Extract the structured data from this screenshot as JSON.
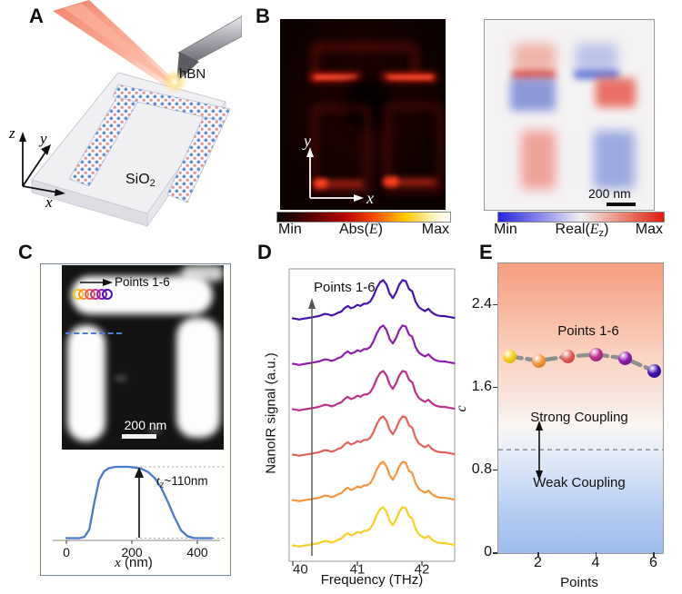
{
  "panels": {
    "a": "A",
    "b": "B",
    "c": "C",
    "d": "D",
    "e": "E"
  },
  "panel_a": {
    "hbn_label": "hBN",
    "substrate_label": "SiO",
    "substrate_sub": "2",
    "axis_x": "x",
    "axis_y": "y",
    "axis_z": "z"
  },
  "panel_b": {
    "axis_x": "x",
    "axis_y": "y",
    "abs_image": {
      "colorbar_min": "Min",
      "title_pre": "Abs(",
      "title_e": "E",
      "title_post": ")",
      "colorbar_max": "Max",
      "min_color": "#000000",
      "max_color": "#ffffff"
    },
    "real_image": {
      "colorbar_min": "Min",
      "title_pre": "Real(",
      "title_e": "E",
      "title_sub": "z",
      "title_post": ")",
      "colorbar_max": "Max",
      "scalebar": "200 nm",
      "min_color": "#2424dd",
      "max_color": "#e01b10"
    }
  },
  "panel_c": {
    "points_label": "Points 1-6",
    "scalebar": "200 nm",
    "ring_colors": [
      "#f2c81f",
      "#f2943c",
      "#e4605c",
      "#c03289",
      "#8c1fb4",
      "#4a14b4"
    ]
  },
  "chart_data": [
    {
      "id": "height_profile",
      "panel": "C",
      "type": "line",
      "xlabel_italic": "x",
      "xlabel_rest": " (nm)",
      "x_ticks": [
        "0",
        "200",
        "400"
      ],
      "annotation": {
        "t": "t",
        "sub": "z",
        "rest": "~110nm"
      },
      "line_color": "#4a7bc8",
      "x_nm": [
        0,
        20,
        40,
        55,
        70,
        85,
        100,
        115,
        130,
        150,
        170,
        190,
        210,
        230,
        250,
        270,
        290,
        310,
        330,
        350,
        370,
        390,
        410,
        430,
        445
      ],
      "height_nm": [
        2,
        2,
        2,
        4,
        15,
        55,
        90,
        103,
        108,
        110,
        110,
        110,
        109,
        107,
        102,
        93,
        78,
        57,
        34,
        14,
        5,
        2,
        2,
        2,
        2
      ],
      "height_value_nm": 110
    },
    {
      "id": "nanoir_spectra",
      "panel": "D",
      "type": "line",
      "xlabel": "Frequency (THz)",
      "ylabel": "NanoIR signal (a.u.)",
      "x_ticks": [
        "40",
        "41",
        "42"
      ],
      "xlim": [
        40,
        42.5
      ],
      "annotation": "Points 1-6",
      "x_thz": [
        40.0,
        40.05,
        40.1,
        40.15,
        40.2,
        40.25,
        40.3,
        40.35,
        40.4,
        40.45,
        40.5,
        40.55,
        40.6,
        40.65,
        40.7,
        40.75,
        40.8,
        40.85,
        40.9,
        40.95,
        41.0,
        41.05,
        41.1,
        41.15,
        41.2,
        41.25,
        41.3,
        41.35,
        41.4,
        41.45,
        41.5,
        41.55,
        41.6,
        41.65,
        41.7,
        41.75,
        41.8,
        41.85,
        41.9,
        41.95,
        42.0,
        42.05,
        42.1,
        42.15,
        42.2,
        42.25,
        42.3,
        42.35,
        42.4,
        42.45,
        42.5
      ],
      "shape": [
        4,
        3,
        2,
        3,
        4,
        5,
        6,
        7,
        8,
        10,
        12,
        11,
        9,
        11,
        14,
        16,
        22,
        26,
        22,
        24,
        28,
        26,
        30,
        30,
        34,
        44,
        58,
        68,
        72,
        64,
        48,
        40,
        50,
        64,
        72,
        70,
        56,
        52,
        34,
        24,
        20,
        17,
        21,
        15,
        11,
        9,
        8,
        8,
        7,
        6,
        5
      ],
      "series": [
        {
          "name": "Point 1",
          "color": "#f7cf25"
        },
        {
          "name": "Point 2",
          "color": "#f6953e"
        },
        {
          "name": "Point 3",
          "color": "#e4605c"
        },
        {
          "name": "Point 4",
          "color": "#bb3089"
        },
        {
          "name": "Point 5",
          "color": "#8e1dae"
        },
        {
          "name": "Point 6",
          "color": "#4412ae"
        }
      ]
    },
    {
      "id": "coupling_constant",
      "panel": "E",
      "type": "scatter",
      "xlabel": "Points",
      "ylabel": "c",
      "x_ticks": [
        "2",
        "4",
        "6"
      ],
      "y_ticks": [
        "0",
        "0.8",
        "1.6",
        "2.4"
      ],
      "xlim": [
        0.6,
        6.3
      ],
      "ylim": [
        0,
        2.8
      ],
      "threshold_c": 1.0,
      "annotation": "Points 1-6",
      "labels": {
        "above": "Strong Coupling",
        "below": "Weak Coupling"
      },
      "connector_color": "#8f8f8f",
      "points": [
        {
          "x": 1,
          "c": 1.9,
          "color": "#f7cf25",
          "dark": "#c79a08"
        },
        {
          "x": 2,
          "c": 1.86,
          "color": "#f6953e",
          "dark": "#c56714"
        },
        {
          "x": 3,
          "c": 1.9,
          "color": "#e4605c",
          "dark": "#aa3430"
        },
        {
          "x": 4,
          "c": 1.92,
          "color": "#bb3089",
          "dark": "#871b60"
        },
        {
          "x": 5,
          "c": 1.88,
          "color": "#8e1dae",
          "dark": "#5e1076"
        },
        {
          "x": 6,
          "c": 1.76,
          "color": "#4412ae",
          "dark": "#280a6e"
        }
      ]
    }
  ]
}
